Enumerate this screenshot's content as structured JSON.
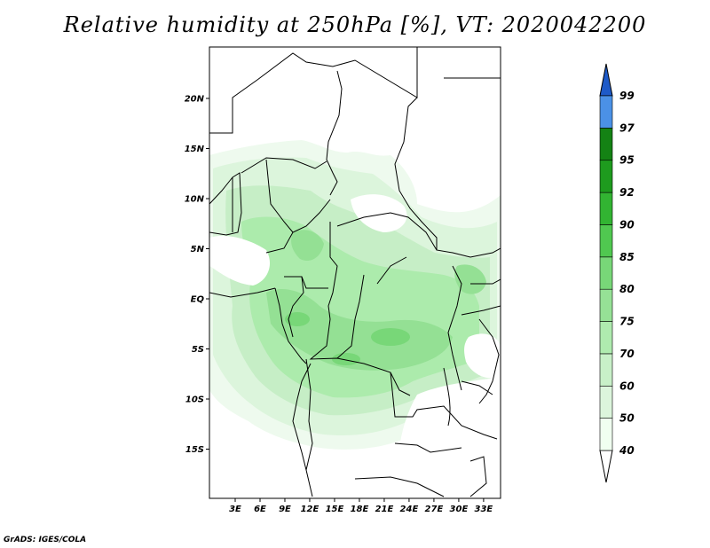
{
  "title": "Relative humidity at 250hPa [%], VT: 2020042200",
  "credit": "GrADS: IGES/COLA",
  "map": {
    "lon_range": [
      0,
      34
    ],
    "lat_range": [
      -20,
      25
    ],
    "lat_ticks": [
      {
        "value": 20,
        "label": "20N"
      },
      {
        "value": 15,
        "label": "15N"
      },
      {
        "value": 10,
        "label": "10N"
      },
      {
        "value": 5,
        "label": "5N"
      },
      {
        "value": 0,
        "label": "EQ"
      },
      {
        "value": -5,
        "label": "5S"
      },
      {
        "value": -10,
        "label": "10S"
      },
      {
        "value": -15,
        "label": "15S"
      }
    ],
    "lon_ticks": [
      {
        "value": 3,
        "label": "3E"
      },
      {
        "value": 6,
        "label": "6E"
      },
      {
        "value": 9,
        "label": "9E"
      },
      {
        "value": 12,
        "label": "12E"
      },
      {
        "value": 15,
        "label": "15E"
      },
      {
        "value": 18,
        "label": "18E"
      },
      {
        "value": 21,
        "label": "21E"
      },
      {
        "value": 24,
        "label": "24E"
      },
      {
        "value": 27,
        "label": "27E"
      },
      {
        "value": 30,
        "label": "30E"
      },
      {
        "value": 33,
        "label": "33E"
      }
    ]
  },
  "colorbar": {
    "levels": [
      {
        "label": "40",
        "color": "#f0fff0"
      },
      {
        "label": "50",
        "color": "#dcf5dc"
      },
      {
        "label": "60",
        "color": "#c8f0c8"
      },
      {
        "label": "70",
        "color": "#afebaf"
      },
      {
        "label": "75",
        "color": "#96e196"
      },
      {
        "label": "80",
        "color": "#78d778"
      },
      {
        "label": "85",
        "color": "#50c850"
      },
      {
        "label": "90",
        "color": "#32b432"
      },
      {
        "label": "92",
        "color": "#1e9b1e"
      },
      {
        "label": "95",
        "color": "#148214"
      },
      {
        "label": "97",
        "color": "#4b91e6"
      },
      {
        "label": "99",
        "color": "#2f6fd6"
      }
    ],
    "top_color": "#1e5ac8",
    "bottom_color": "#ffffff"
  }
}
